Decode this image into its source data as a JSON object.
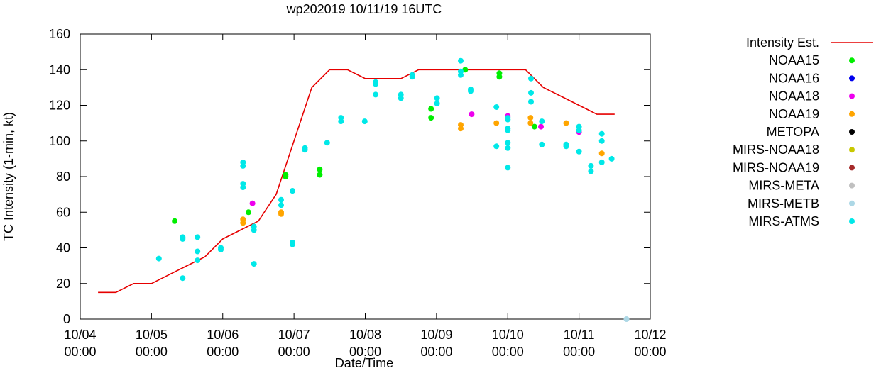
{
  "chart_data": {
    "type": "scatter",
    "title": "wp202019 10/11/19 16UTC",
    "xlabel": "Date/Time",
    "ylabel": "TC Intensity (1-min, kt)",
    "ylim": [
      0,
      160
    ],
    "xlim": [
      "2019-10-04 00:00",
      "2019-10-12 00:00"
    ],
    "grid": false,
    "legend_position": "right",
    "yticks": [
      0,
      20,
      40,
      60,
      80,
      100,
      120,
      140,
      160
    ],
    "xticks": [
      {
        "value": "2019-10-04 00:00",
        "line1": "10/04",
        "line2": "00:00"
      },
      {
        "value": "2019-10-05 00:00",
        "line1": "10/05",
        "line2": "00:00"
      },
      {
        "value": "2019-10-06 00:00",
        "line1": "10/06",
        "line2": "00:00"
      },
      {
        "value": "2019-10-07 00:00",
        "line1": "10/07",
        "line2": "00:00"
      },
      {
        "value": "2019-10-08 00:00",
        "line1": "10/08",
        "line2": "00:00"
      },
      {
        "value": "2019-10-09 00:00",
        "line1": "10/09",
        "line2": "00:00"
      },
      {
        "value": "2019-10-10 00:00",
        "line1": "10/10",
        "line2": "00:00"
      },
      {
        "value": "2019-10-11 00:00",
        "line1": "10/11",
        "line2": "00:00"
      },
      {
        "value": "2019-10-12 00:00",
        "line1": "10/12",
        "line2": "00:00"
      }
    ],
    "series": [
      {
        "name": "Intensity Est.",
        "kind": "line",
        "color": "#e60000",
        "x": [
          "2019-10-04 06:00",
          "2019-10-04 12:00",
          "2019-10-04 18:00",
          "2019-10-05 00:00",
          "2019-10-05 06:00",
          "2019-10-05 12:00",
          "2019-10-05 18:00",
          "2019-10-06 00:00",
          "2019-10-06 06:00",
          "2019-10-06 12:00",
          "2019-10-06 18:00",
          "2019-10-07 00:00",
          "2019-10-07 06:00",
          "2019-10-07 12:00",
          "2019-10-07 18:00",
          "2019-10-08 00:00",
          "2019-10-08 06:00",
          "2019-10-08 12:00",
          "2019-10-08 18:00",
          "2019-10-09 00:00",
          "2019-10-09 06:00",
          "2019-10-09 12:00",
          "2019-10-09 18:00",
          "2019-10-10 00:00",
          "2019-10-10 06:00",
          "2019-10-10 12:00",
          "2019-10-10 18:00",
          "2019-10-11 00:00",
          "2019-10-11 06:00",
          "2019-10-11 12:00"
        ],
        "y": [
          15,
          15,
          20,
          20,
          25,
          30,
          35,
          45,
          50,
          55,
          70,
          100,
          130,
          140,
          140,
          135,
          135,
          135,
          140,
          140,
          140,
          140,
          140,
          140,
          140,
          130,
          125,
          120,
          115,
          115
        ]
      },
      {
        "name": "NOAA15",
        "kind": "points",
        "color": "#00ee00",
        "x": [
          "2019-10-05 07:50",
          "2019-10-06 08:40",
          "2019-10-06 21:10",
          "2019-10-06 21:10",
          "2019-10-07 08:40",
          "2019-10-07 08:40",
          "2019-10-08 22:10",
          "2019-10-08 22:10",
          "2019-10-09 09:40",
          "2019-10-09 21:10",
          "2019-10-09 21:10",
          "2019-10-10 09:00"
        ],
        "y": [
          55,
          60,
          81,
          80,
          84,
          81,
          118,
          113,
          140,
          138,
          136,
          108
        ]
      },
      {
        "name": "NOAA16",
        "kind": "points",
        "color": "#0000ee",
        "x": [],
        "y": []
      },
      {
        "name": "NOAA18",
        "kind": "points",
        "color": "#ee00ee",
        "x": [
          "2019-10-06 10:00",
          "2019-10-09 11:50",
          "2019-10-10 00:00",
          "2019-10-10 11:10",
          "2019-10-11 00:00"
        ],
        "y": [
          65,
          115,
          114,
          108,
          105
        ]
      },
      {
        "name": "NOAA19",
        "kind": "points",
        "color": "#ffa500",
        "x": [
          "2019-10-06 06:50",
          "2019-10-06 06:50",
          "2019-10-06 19:40",
          "2019-10-06 19:40",
          "2019-10-09 08:10",
          "2019-10-09 08:10",
          "2019-10-09 20:10",
          "2019-10-10 07:40",
          "2019-10-10 07:40",
          "2019-10-10 19:40",
          "2019-10-11 07:40"
        ],
        "y": [
          56,
          54,
          60,
          59,
          109,
          107,
          110,
          113,
          110,
          110,
          93
        ]
      },
      {
        "name": "METOPA",
        "kind": "points",
        "color": "#000000",
        "x": [],
        "y": []
      },
      {
        "name": "MIRS-NOAA18",
        "kind": "points",
        "color": "#c8c800",
        "x": [],
        "y": []
      },
      {
        "name": "MIRS-NOAA19",
        "kind": "points",
        "color": "#a52a2a",
        "x": [],
        "y": []
      },
      {
        "name": "MIRS-META",
        "kind": "points",
        "color": "#c0c0c0",
        "x": [],
        "y": []
      },
      {
        "name": "MIRS-METB",
        "kind": "points",
        "color": "#add8e6",
        "x": [
          "2019-10-11 16:00"
        ],
        "y": [
          0
        ]
      },
      {
        "name": "MIRS-ATMS",
        "kind": "points",
        "color": "#00e8e8",
        "x": [
          "2019-10-05 02:30",
          "2019-10-05 10:30",
          "2019-10-05 10:30",
          "2019-10-05 10:30",
          "2019-10-05 15:30",
          "2019-10-05 15:30",
          "2019-10-05 15:30",
          "2019-10-05 23:20",
          "2019-10-05 23:20",
          "2019-10-06 06:50",
          "2019-10-06 06:50",
          "2019-10-06 06:50",
          "2019-10-06 06:50",
          "2019-10-06 10:30",
          "2019-10-06 10:30",
          "2019-10-06 10:30",
          "2019-10-06 19:40",
          "2019-10-06 19:40",
          "2019-10-06 23:30",
          "2019-10-06 23:30",
          "2019-10-06 23:30",
          "2019-10-06 23:30",
          "2019-10-07 03:40",
          "2019-10-07 03:40",
          "2019-10-07 11:10",
          "2019-10-07 15:50",
          "2019-10-07 15:50",
          "2019-10-07 23:50",
          "2019-10-08 03:30",
          "2019-10-08 03:30",
          "2019-10-08 03:30",
          "2019-10-08 12:00",
          "2019-10-08 12:00",
          "2019-10-08 15:50",
          "2019-10-08 15:50",
          "2019-10-09 00:10",
          "2019-10-09 00:10",
          "2019-10-09 08:10",
          "2019-10-09 08:10",
          "2019-10-09 08:10",
          "2019-10-09 11:30",
          "2019-10-09 11:30",
          "2019-10-09 20:10",
          "2019-10-09 20:10",
          "2019-10-10 00:00",
          "2019-10-10 00:00",
          "2019-10-10 00:00",
          "2019-10-10 00:00",
          "2019-10-10 00:00",
          "2019-10-10 00:00",
          "2019-10-10 00:00",
          "2019-10-10 07:50",
          "2019-10-10 07:50",
          "2019-10-10 07:50",
          "2019-10-10 11:30",
          "2019-10-10 11:30",
          "2019-10-10 19:40",
          "2019-10-10 19:40",
          "2019-10-11 00:00",
          "2019-10-11 00:00",
          "2019-10-11 00:00",
          "2019-10-11 04:00",
          "2019-10-11 04:00",
          "2019-10-11 07:40",
          "2019-10-11 07:40",
          "2019-10-11 07:40",
          "2019-10-11 11:00"
        ],
        "y": [
          34,
          46,
          45,
          23,
          46,
          38,
          33,
          40,
          39,
          88,
          86,
          76,
          74,
          31,
          52,
          50,
          67,
          64,
          72,
          72,
          43,
          42,
          96,
          95,
          99,
          113,
          111,
          111,
          133,
          132,
          126,
          126,
          124,
          137,
          136,
          124,
          121,
          145,
          139,
          137,
          129,
          128,
          119,
          97,
          113,
          112,
          107,
          106,
          99,
          96,
          85,
          135,
          127,
          122,
          111,
          98,
          98,
          97,
          108,
          106,
          94,
          86,
          83,
          104,
          100,
          88,
          90
        ]
      }
    ]
  }
}
